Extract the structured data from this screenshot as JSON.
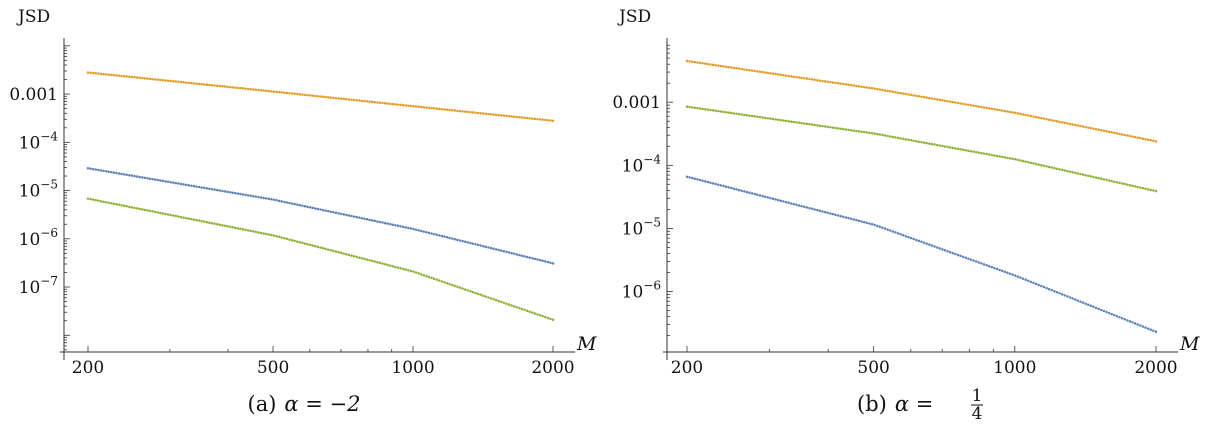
{
  "chart_data": [
    {
      "type": "scatter",
      "caption_prefix": "(a)",
      "caption_math": "α = −2",
      "ylabel": "JSD",
      "xlabel": "M",
      "x_scale": "log",
      "y_scale": "log",
      "xlim": [
        190,
        2000
      ],
      "ylim": [
        4.5e-09,
        0.012
      ],
      "x_ticks": [
        200,
        500,
        1000,
        2000
      ],
      "x_tick_labels": [
        "200",
        "500",
        "1000",
        "2000"
      ],
      "y_ticks": [
        0.001,
        0.0001,
        1e-05,
        1e-06,
        1e-07
      ],
      "y_tick_labels": [
        {
          "text": "0.001",
          "base": "",
          "exp": ""
        },
        {
          "text": "",
          "base": "10",
          "exp": "−4"
        },
        {
          "text": "",
          "base": "10",
          "exp": "−5"
        },
        {
          "text": "",
          "base": "10",
          "exp": "−6"
        },
        {
          "text": "",
          "base": "10",
          "exp": "−7"
        }
      ],
      "series": [
        {
          "color": "#e19c24",
          "points": [
            [
              200,
              0.0028
            ],
            [
              500,
              0.00113
            ],
            [
              1000,
              0.00056
            ],
            [
              2000,
              0.00028
            ]
          ]
        },
        {
          "color": "#5e81b5",
          "points": [
            [
              200,
              2.9e-05
            ],
            [
              500,
              6.5e-06
            ],
            [
              1000,
              1.6e-06
            ],
            [
              2000,
              3.1e-07
            ]
          ]
        },
        {
          "color": "#8fb032",
          "points": [
            [
              200,
              6.8e-06
            ],
            [
              500,
              1.18e-06
            ],
            [
              1000,
              2.1e-07
            ],
            [
              2000,
              2.1e-08
            ]
          ]
        }
      ]
    },
    {
      "type": "scatter",
      "caption_prefix": "(b)",
      "caption_math": "α =",
      "caption_frac": {
        "num": "1",
        "den": "4"
      },
      "ylabel": "JSD",
      "xlabel": "M",
      "x_scale": "log",
      "y_scale": "log",
      "xlim": [
        190,
        2000
      ],
      "ylim": [
        1.1e-07,
        0.009
      ],
      "x_ticks": [
        200,
        500,
        1000,
        2000
      ],
      "x_tick_labels": [
        "200",
        "500",
        "1000",
        "2000"
      ],
      "y_ticks": [
        0.001,
        0.0001,
        1e-05,
        1e-06
      ],
      "y_tick_labels": [
        {
          "text": "0.001",
          "base": "",
          "exp": ""
        },
        {
          "text": "",
          "base": "10",
          "exp": "−4"
        },
        {
          "text": "",
          "base": "10",
          "exp": "−5"
        },
        {
          "text": "",
          "base": "10",
          "exp": "−6"
        }
      ],
      "series": [
        {
          "color": "#e19c24",
          "points": [
            [
              200,
              0.0045
            ],
            [
              500,
              0.00165
            ],
            [
              1000,
              0.00068
            ],
            [
              2000,
              0.00024
            ]
          ]
        },
        {
          "color": "#8fb032",
          "points": [
            [
              200,
              0.00085
            ],
            [
              500,
              0.00032
            ],
            [
              1000,
              0.000125
            ],
            [
              2000,
              3.9e-05
            ]
          ]
        },
        {
          "color": "#5e81b5",
          "points": [
            [
              200,
              6.6e-05
            ],
            [
              500,
              1.15e-05
            ],
            [
              1000,
              1.8e-06
            ],
            [
              2000,
              2.3e-07
            ]
          ]
        }
      ]
    }
  ]
}
